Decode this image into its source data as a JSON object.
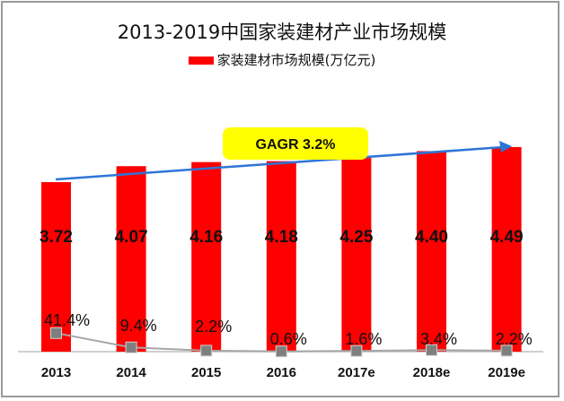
{
  "chart_data": {
    "type": "bar",
    "title": "2013-2019中国家装建材产业市场规模",
    "categories": [
      "2013",
      "2014",
      "2015",
      "2016",
      "2017e",
      "2018e",
      "2019e"
    ],
    "series": [
      {
        "name": "家装建材市场规模(万亿元)",
        "type": "bar",
        "color": "#ff0000",
        "values": [
          3.72,
          4.07,
          4.16,
          4.18,
          4.25,
          4.4,
          4.49
        ],
        "labels": [
          "3.72",
          "4.07",
          "4.16",
          "4.18",
          "4.25",
          "4.40",
          "4.49"
        ]
      },
      {
        "type": "line",
        "color": "#a6a6a6",
        "marker_color": "#7f7f7f",
        "values": [
          41.4,
          9.4,
          2.2,
          0.6,
          1.6,
          3.4,
          2.2
        ],
        "labels": [
          "41.4%",
          "9.4%",
          "2.2%",
          "0.6%",
          "1.6%",
          "3.4%",
          "2.2%"
        ]
      }
    ],
    "annotation": {
      "text": "GAGR 3.2%",
      "color": "#ffff00",
      "arrow_color": "#2e75d6"
    },
    "legend": "top",
    "grid": false
  }
}
